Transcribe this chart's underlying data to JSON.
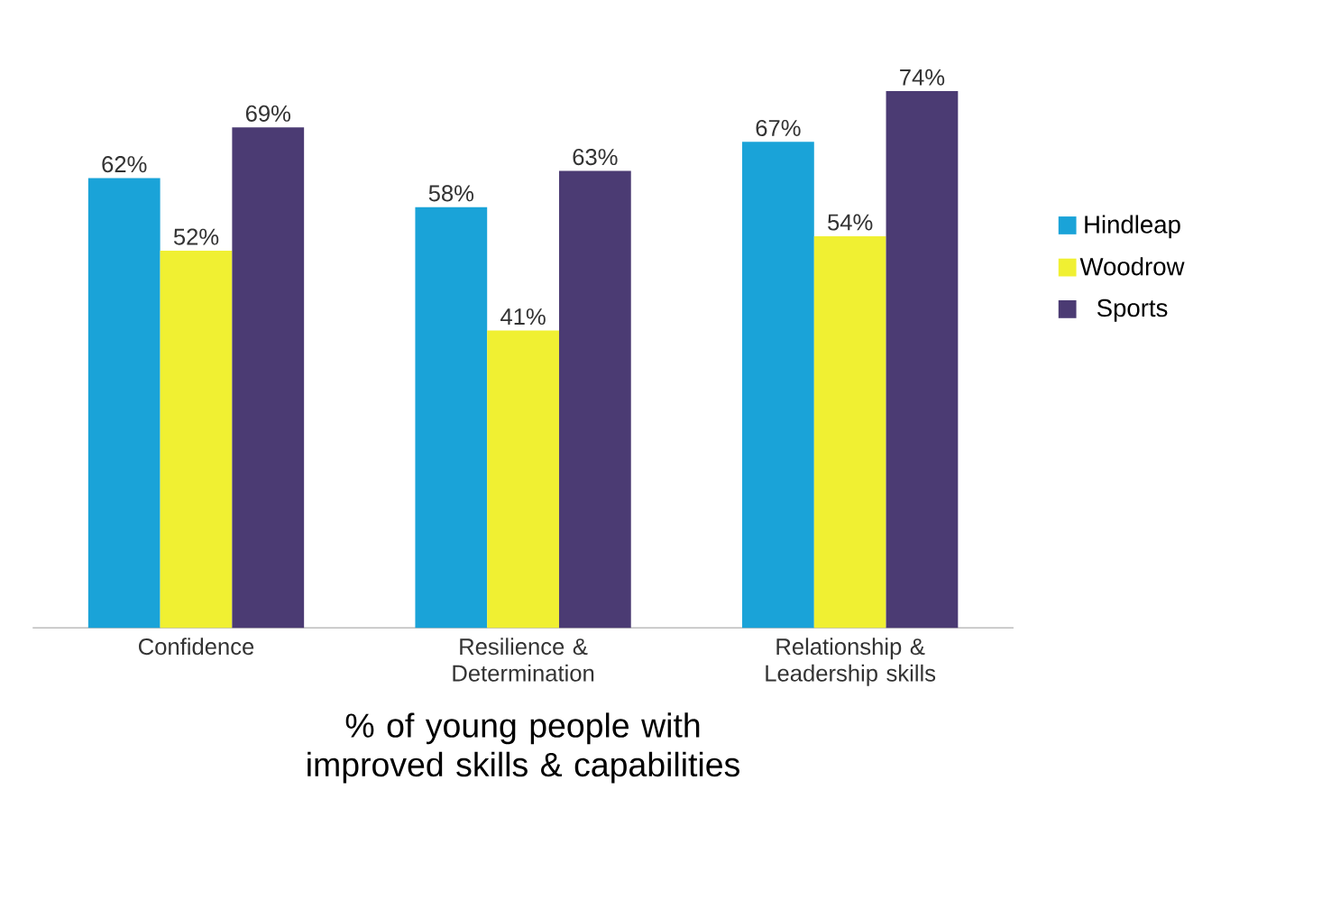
{
  "chart_data": {
    "type": "bar",
    "xlabel": "% of young people with improved skills & capabilities",
    "categories": [
      "Confidence",
      "Resilience & Determination",
      "Relationship & Leadership skills"
    ],
    "series": [
      {
        "name": "Hindleap",
        "color": "#1aa3d8",
        "values": [
          62,
          58,
          67
        ],
        "value_labels": [
          "62%",
          "58%",
          "67%"
        ]
      },
      {
        "name": "Woodrow",
        "color": "#f0f032",
        "values": [
          52,
          41,
          54
        ],
        "value_labels": [
          "52%",
          "41%",
          "54%"
        ]
      },
      {
        "name": "Sports",
        "color": "#4b3b73",
        "values": [
          69,
          63,
          74
        ],
        "value_labels": [
          "69%",
          "63%",
          "74%"
        ]
      }
    ],
    "legend": "right"
  }
}
